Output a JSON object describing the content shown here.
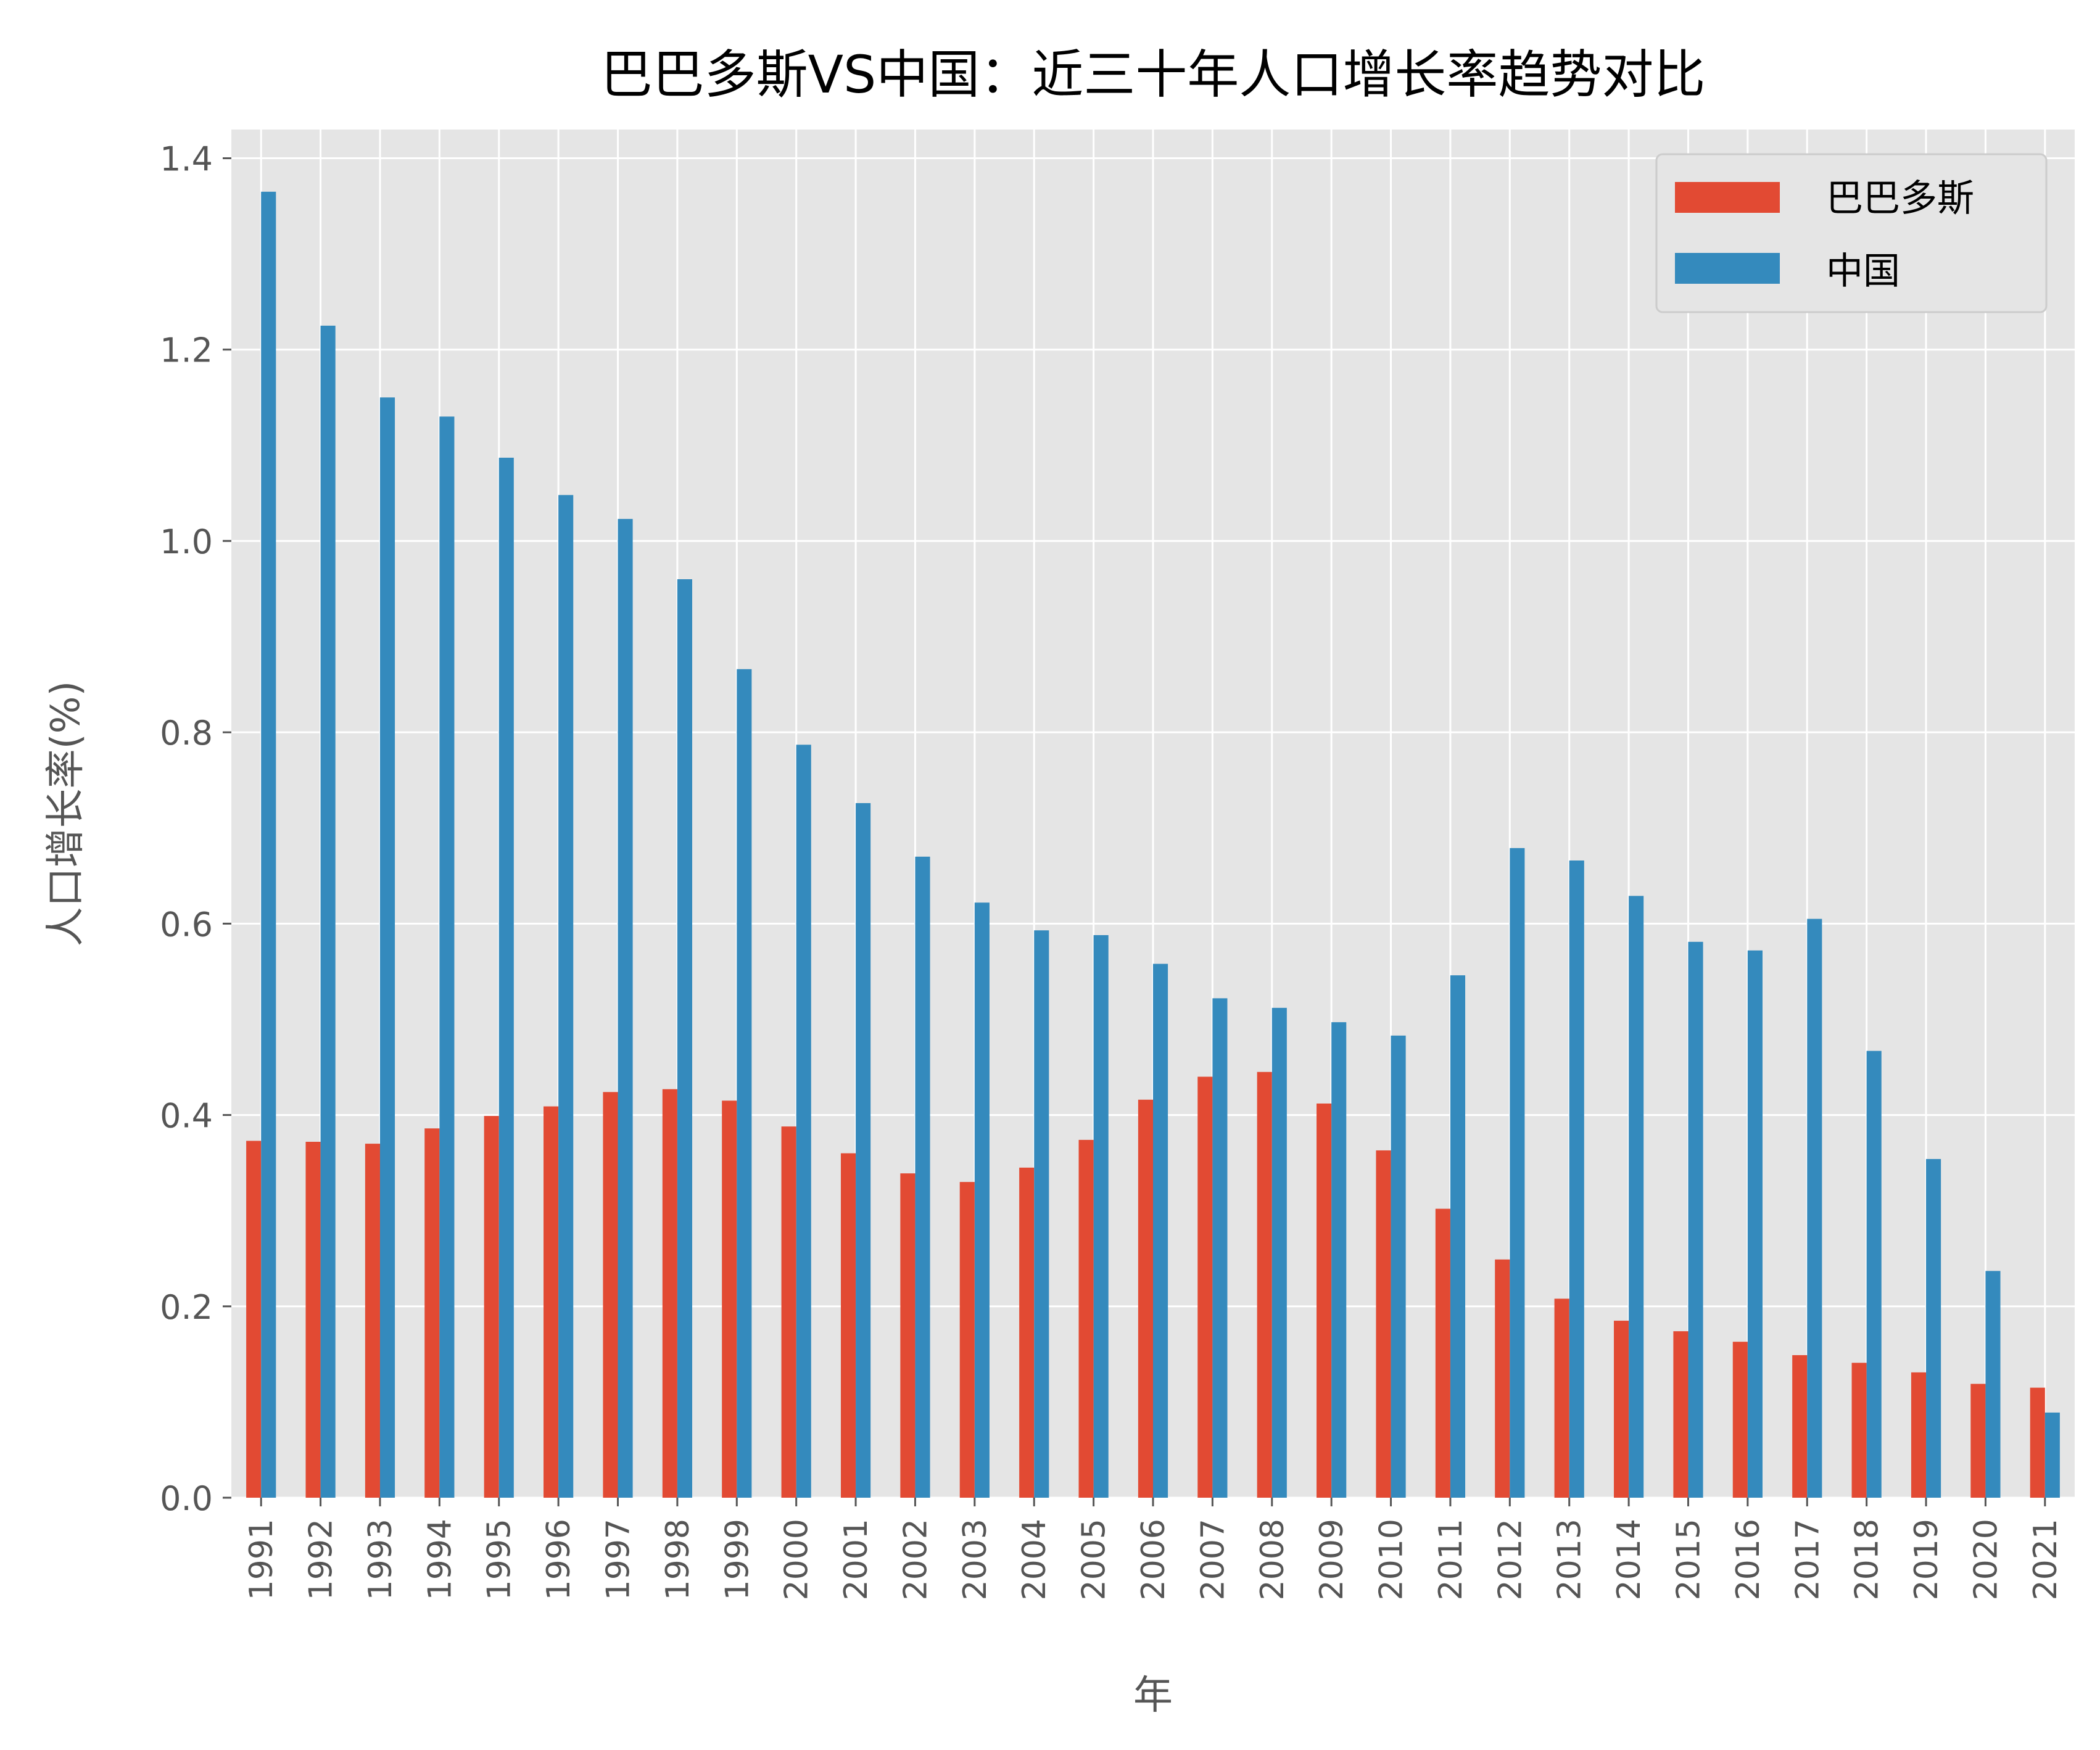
{
  "chart_data": {
    "type": "bar",
    "title": "巴巴多斯VS中国：近三十年人口增长率趋势对比",
    "xlabel": "年",
    "ylabel": "人口增长率(%)",
    "ylim": [
      0,
      1.43
    ],
    "yticks": [
      "0.0",
      "0.2",
      "0.4",
      "0.6",
      "0.8",
      "1.0",
      "1.2",
      "1.4"
    ],
    "grid": true,
    "legend_position": "top-right",
    "categories": [
      "1991",
      "1992",
      "1993",
      "1994",
      "1995",
      "1996",
      "1997",
      "1998",
      "1999",
      "2000",
      "2001",
      "2002",
      "2003",
      "2004",
      "2005",
      "2006",
      "2007",
      "2008",
      "2009",
      "2010",
      "2011",
      "2012",
      "2013",
      "2014",
      "2015",
      "2016",
      "2017",
      "2018",
      "2019",
      "2020",
      "2021"
    ],
    "series": [
      {
        "name": "巴巴多斯",
        "color": "#E24A33",
        "values": [
          0.373,
          0.372,
          0.37,
          0.386,
          0.399,
          0.409,
          0.424,
          0.427,
          0.415,
          0.388,
          0.36,
          0.339,
          0.33,
          0.345,
          0.374,
          0.416,
          0.44,
          0.445,
          0.412,
          0.363,
          0.302,
          0.249,
          0.208,
          0.185,
          0.174,
          0.163,
          0.149,
          0.141,
          0.131,
          0.119,
          0.115
        ]
      },
      {
        "name": "中国",
        "color": "#348ABD",
        "values": [
          1.365,
          1.225,
          1.15,
          1.13,
          1.087,
          1.048,
          1.023,
          0.96,
          0.866,
          0.787,
          0.726,
          0.67,
          0.622,
          0.593,
          0.588,
          0.558,
          0.522,
          0.512,
          0.497,
          0.483,
          0.546,
          0.679,
          0.666,
          0.629,
          0.581,
          0.572,
          0.605,
          0.467,
          0.354,
          0.237,
          0.089
        ]
      }
    ]
  },
  "colors": {
    "background": "#ffffff",
    "plot_background": "#E5E5E5",
    "grid": "#ffffff",
    "tick_text": "#555555",
    "title_text": "#000000"
  }
}
